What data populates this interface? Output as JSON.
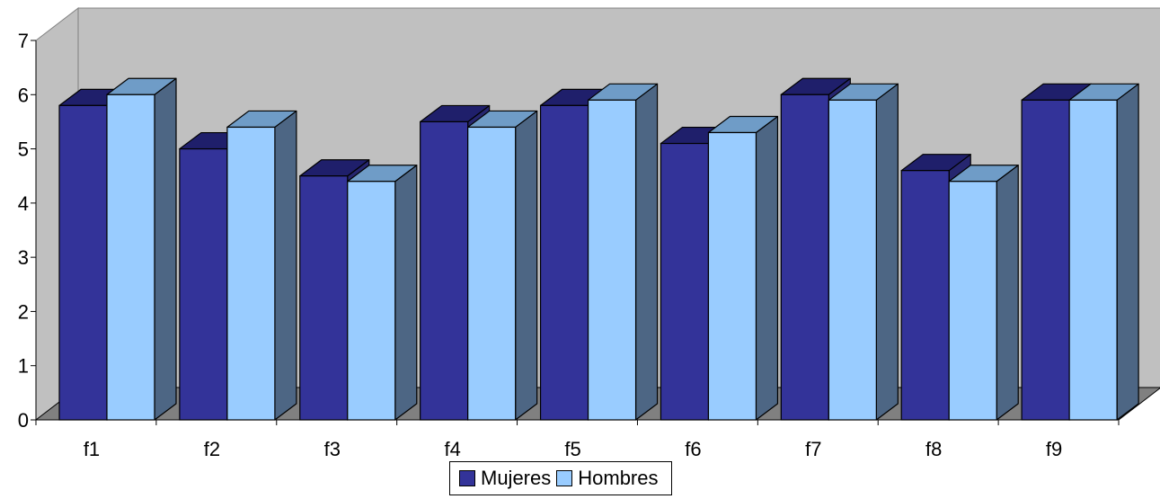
{
  "chart_data": {
    "type": "bar",
    "title": "",
    "xlabel": "",
    "ylabel": "",
    "ylim": [
      0,
      7
    ],
    "yticks": [
      "0",
      "1",
      "2",
      "3",
      "4",
      "5",
      "6",
      "7"
    ],
    "categories": [
      "f1",
      "f2",
      "f3",
      "f4",
      "f5",
      "f6",
      "f7",
      "f8",
      "f9"
    ],
    "series": [
      {
        "name": "Mujeres",
        "values": [
          5.8,
          5.0,
          4.5,
          5.5,
          5.8,
          5.1,
          6.0,
          4.6,
          5.9
        ]
      },
      {
        "name": "Hombres",
        "values": [
          6.0,
          5.4,
          4.4,
          5.4,
          5.9,
          5.3,
          5.9,
          4.4,
          5.9
        ]
      }
    ],
    "grid": false,
    "legend_position": "bottom",
    "style": "3d-column"
  },
  "colors": {
    "wall": "#c0c0c0",
    "floor": "#808080",
    "mujeres_front": "#333399",
    "mujeres_top": "#1f1f6b",
    "mujeres_side": "#26266f",
    "hombres_front": "#99ccff",
    "hombres_top": "#6f9cc7",
    "hombres_side": "#4d6684"
  },
  "legend": {
    "items": [
      {
        "label": "Mujeres",
        "color": "#333399"
      },
      {
        "label": "Hombres",
        "color": "#99ccff"
      }
    ]
  }
}
